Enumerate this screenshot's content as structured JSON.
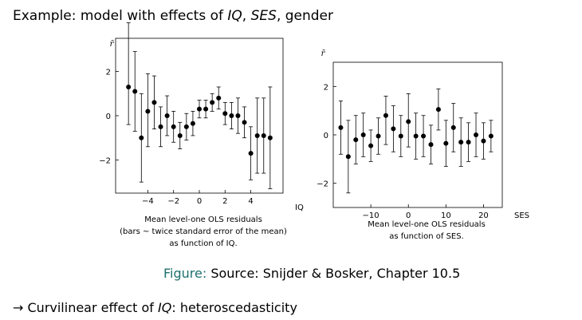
{
  "slide": {
    "title_prefix": "Example: model with effects of ",
    "title_iq": "IQ",
    "title_sep1": ", ",
    "title_ses": "SES",
    "title_suffix": ", gender"
  },
  "figure_caption": {
    "label": "Figure:",
    "text": " Source: Snijder & Bosker, Chapter 10.5"
  },
  "bullet": {
    "arrow": "→ ",
    "prefix": "Curvilinear effect of ",
    "iq": "IQ",
    "suffix": ": heteroscedasticity"
  },
  "chart_data": [
    {
      "type": "scatter",
      "title": "",
      "ylabel": "r̄",
      "xlabel": "IQ",
      "caption_lines": [
        "Mean level-one OLS residuals",
        "(bars ~ twice standard error of the mean)",
        "as function of IQ."
      ],
      "xlim": [
        -6.5,
        6.5
      ],
      "ylim": [
        -3.5,
        3.5
      ],
      "x_ticks": [
        -4,
        -2,
        0,
        2,
        4
      ],
      "x_tick_labels": [
        "−4",
        "−2",
        "0",
        "2",
        "4"
      ],
      "y_ticks": [
        -2,
        0,
        2
      ],
      "y_tick_labels": [
        "−2",
        "0",
        "2"
      ],
      "grid": false,
      "points": [
        {
          "x": -5.5,
          "y": 1.3,
          "lo": -0.4,
          "hi": 4.2
        },
        {
          "x": -5.0,
          "y": 1.1,
          "lo": -0.7,
          "hi": 2.9
        },
        {
          "x": -4.5,
          "y": -1.0,
          "lo": -3.0,
          "hi": 1.0
        },
        {
          "x": -4.0,
          "y": 0.2,
          "lo": -1.4,
          "hi": 1.9
        },
        {
          "x": -3.5,
          "y": 0.6,
          "lo": -0.6,
          "hi": 1.8
        },
        {
          "x": -3.0,
          "y": -0.5,
          "lo": -1.4,
          "hi": 0.4
        },
        {
          "x": -2.5,
          "y": 0.0,
          "lo": -0.9,
          "hi": 0.9
        },
        {
          "x": -2.0,
          "y": -0.5,
          "lo": -1.2,
          "hi": 0.2
        },
        {
          "x": -1.5,
          "y": -0.9,
          "lo": -1.5,
          "hi": -0.3
        },
        {
          "x": -1.0,
          "y": -0.5,
          "lo": -1.1,
          "hi": 0.1
        },
        {
          "x": -0.5,
          "y": -0.35,
          "lo": -0.9,
          "hi": 0.2
        },
        {
          "x": 0.0,
          "y": 0.3,
          "lo": -0.1,
          "hi": 0.7
        },
        {
          "x": 0.5,
          "y": 0.3,
          "lo": -0.1,
          "hi": 0.7
        },
        {
          "x": 1.0,
          "y": 0.6,
          "lo": 0.2,
          "hi": 1.0
        },
        {
          "x": 1.5,
          "y": 0.8,
          "lo": 0.3,
          "hi": 1.3
        },
        {
          "x": 2.0,
          "y": 0.1,
          "lo": -0.4,
          "hi": 0.6
        },
        {
          "x": 2.5,
          "y": 0.0,
          "lo": -0.6,
          "hi": 0.6
        },
        {
          "x": 3.0,
          "y": 0.0,
          "lo": -0.8,
          "hi": 0.8
        },
        {
          "x": 3.5,
          "y": -0.3,
          "lo": -1.0,
          "hi": 0.4
        },
        {
          "x": 4.0,
          "y": -1.7,
          "lo": -2.9,
          "hi": -0.5
        },
        {
          "x": 4.5,
          "y": -0.9,
          "lo": -2.6,
          "hi": 0.8
        },
        {
          "x": 5.0,
          "y": -0.9,
          "lo": -2.6,
          "hi": 0.8
        },
        {
          "x": 5.5,
          "y": -1.0,
          "lo": -3.3,
          "hi": 1.3
        }
      ]
    },
    {
      "type": "scatter",
      "title": "",
      "ylabel": "r̄",
      "xlabel": "SES",
      "caption_lines": [
        "Mean level-one OLS residuals",
        "as function of SES."
      ],
      "xlim": [
        -20,
        25
      ],
      "ylim": [
        -3.0,
        3.0
      ],
      "x_ticks": [
        -10,
        0,
        10,
        20
      ],
      "x_tick_labels": [
        "−10",
        "0",
        "10",
        "20"
      ],
      "y_ticks": [
        -2,
        0,
        2
      ],
      "y_tick_labels": [
        "−2",
        "0",
        "2"
      ],
      "grid": false,
      "points": [
        {
          "x": -18,
          "y": 0.3,
          "lo": -0.8,
          "hi": 1.4
        },
        {
          "x": -16,
          "y": -0.9,
          "lo": -2.4,
          "hi": 0.6
        },
        {
          "x": -14,
          "y": -0.2,
          "lo": -1.2,
          "hi": 0.8
        },
        {
          "x": -12,
          "y": 0.0,
          "lo": -0.9,
          "hi": 0.9
        },
        {
          "x": -10,
          "y": -0.45,
          "lo": -1.1,
          "hi": 0.2
        },
        {
          "x": -8,
          "y": -0.05,
          "lo": -0.8,
          "hi": 0.7
        },
        {
          "x": -6,
          "y": 0.8,
          "lo": -0.4,
          "hi": 1.6
        },
        {
          "x": -4,
          "y": 0.25,
          "lo": -0.7,
          "hi": 1.2
        },
        {
          "x": -2,
          "y": -0.05,
          "lo": -0.9,
          "hi": 0.8
        },
        {
          "x": 0,
          "y": 0.55,
          "lo": -0.5,
          "hi": 1.7
        },
        {
          "x": 2,
          "y": -0.05,
          "lo": -1.0,
          "hi": 0.9
        },
        {
          "x": 4,
          "y": -0.05,
          "lo": -0.9,
          "hi": 0.8
        },
        {
          "x": 6,
          "y": -0.4,
          "lo": -1.2,
          "hi": 0.4
        },
        {
          "x": 8,
          "y": 1.05,
          "lo": 0.2,
          "hi": 1.9
        },
        {
          "x": 10,
          "y": -0.35,
          "lo": -1.3,
          "hi": 0.6
        },
        {
          "x": 12,
          "y": 0.3,
          "lo": -0.7,
          "hi": 1.3
        },
        {
          "x": 14,
          "y": -0.3,
          "lo": -1.3,
          "hi": 0.7
        },
        {
          "x": 16,
          "y": -0.3,
          "lo": -1.1,
          "hi": 0.5
        },
        {
          "x": 18,
          "y": 0.0,
          "lo": -0.9,
          "hi": 0.9
        },
        {
          "x": 20,
          "y": -0.25,
          "lo": -1.0,
          "hi": 0.5
        },
        {
          "x": 22,
          "y": -0.05,
          "lo": -0.7,
          "hi": 0.6
        }
      ]
    }
  ]
}
